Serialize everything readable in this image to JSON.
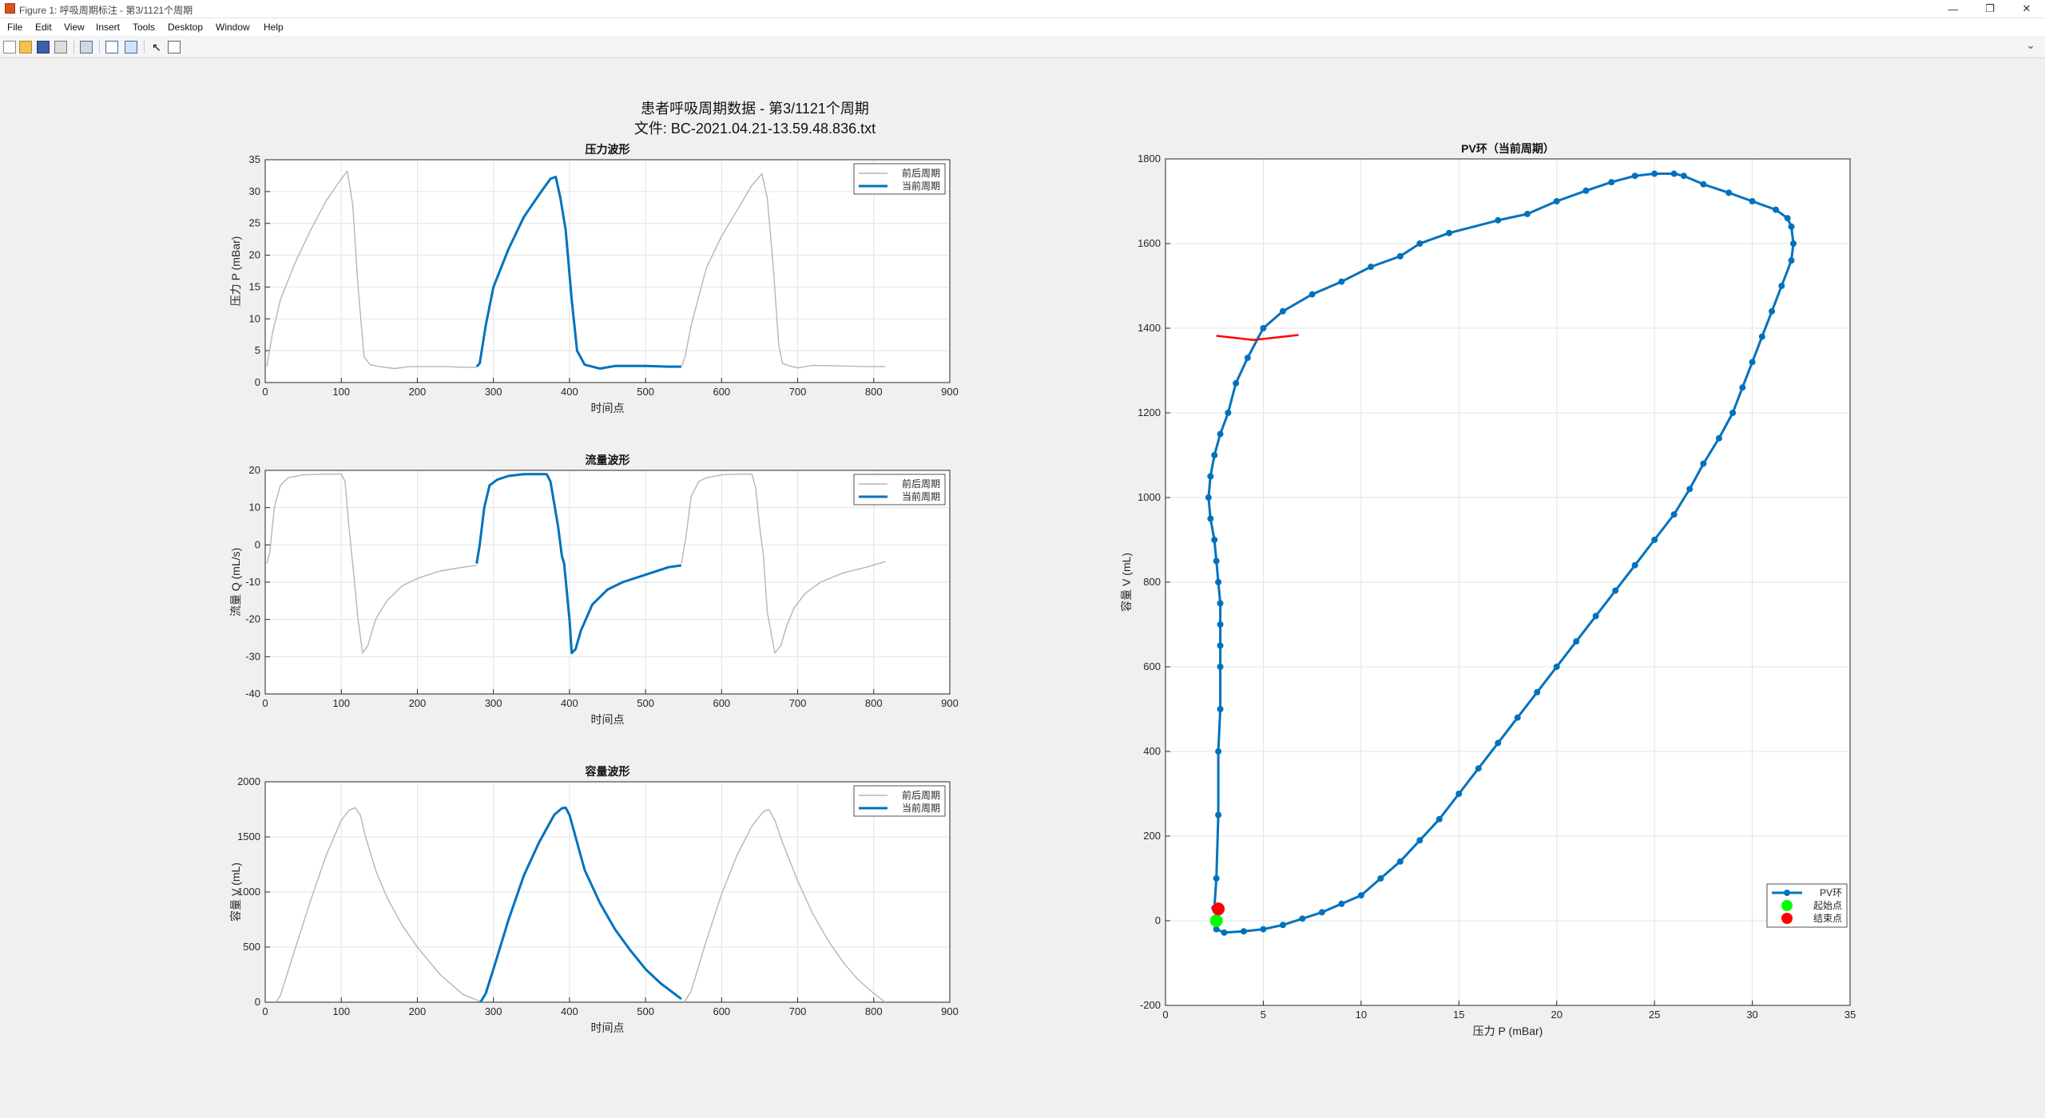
{
  "window": {
    "title": "Figure 1: 呼吸周期标注 - 第3/1121个周期",
    "controls": [
      "—",
      "❐",
      "✕"
    ]
  },
  "menu": [
    "File",
    "Edit",
    "View",
    "Insert",
    "Tools",
    "Desktop",
    "Window",
    "Help"
  ],
  "toolbar": {
    "icons": [
      "new-figure-icon",
      "open-file-icon",
      "save-icon",
      "print-icon",
      "print-preview-icon",
      "hide-plot-tools-icon",
      "show-plot-tools-icon",
      "edit-plot-icon",
      "property-inspector-icon"
    ]
  },
  "figure": {
    "title_line1": "患者呼吸周期数据 - 第3/1121个周期",
    "title_line2": "文件: BC-2021.04.21-13.59.48.836.txt"
  },
  "legend_labels": {
    "prev": "前后周期",
    "curr": "当前周期"
  },
  "colors": {
    "current": "#0072bd",
    "other": "#b5b5b5",
    "start": "#00ff00",
    "end": "#ff0000",
    "marker": "#ff0000"
  },
  "chart_data": [
    {
      "id": "pressure",
      "type": "line",
      "title": "压力波形",
      "xlabel": "时间点",
      "ylabel": "压力 P (mBar)",
      "xlim": [
        0,
        900
      ],
      "ylim": [
        0,
        35
      ],
      "xticks": [
        0,
        100,
        200,
        300,
        400,
        500,
        600,
        700,
        800,
        900
      ],
      "yticks": [
        0,
        5,
        10,
        15,
        20,
        25,
        30,
        35
      ],
      "legend": [
        "前后周期",
        "当前周期"
      ],
      "series": [
        {
          "name": "前后周期",
          "role": "prev",
          "x": [
            2,
            10,
            20,
            40,
            60,
            80,
            100,
            108,
            115,
            122,
            130,
            138,
            150,
            170,
            190,
            210,
            240,
            260,
            278
          ],
          "y": [
            2.5,
            8,
            13,
            19,
            24,
            28.5,
            32,
            33.2,
            28,
            15,
            4,
            2.8,
            2.5,
            2.2,
            2.5,
            2.5,
            2.5,
            2.4,
            2.4
          ]
        },
        {
          "name": "当前周期",
          "role": "curr",
          "x": [
            278,
            282,
            290,
            300,
            320,
            340,
            360,
            375,
            382,
            388,
            395,
            403,
            410,
            420,
            440,
            460,
            500,
            530,
            547
          ],
          "y": [
            2.5,
            3,
            9,
            15,
            21,
            26,
            29.5,
            32,
            32.3,
            29,
            24,
            13,
            5,
            2.8,
            2.2,
            2.6,
            2.6,
            2.5,
            2.5
          ]
        },
        {
          "name": "前后周期",
          "role": "prev",
          "x": [
            547,
            552,
            560,
            580,
            600,
            620,
            640,
            653,
            660,
            668,
            675,
            680,
            690,
            700,
            720,
            760,
            790,
            815
          ],
          "y": [
            2.5,
            4,
            9,
            18,
            23,
            27,
            31,
            32.8,
            29,
            18,
            6,
            3,
            2.6,
            2.3,
            2.7,
            2.6,
            2.5,
            2.5
          ]
        }
      ]
    },
    {
      "id": "flow",
      "type": "line",
      "title": "流量波形",
      "xlabel": "时间点",
      "ylabel": "流量 Q (mL/s)",
      "xlim": [
        0,
        900
      ],
      "ylim": [
        -40,
        20
      ],
      "xticks": [
        0,
        100,
        200,
        300,
        400,
        500,
        600,
        700,
        800,
        900
      ],
      "yticks": [
        -40,
        -30,
        -20,
        -10,
        0,
        10,
        20
      ],
      "legend": [
        "前后周期",
        "当前周期"
      ],
      "series": [
        {
          "name": "前后周期",
          "role": "prev",
          "x": [
            2,
            6,
            12,
            20,
            30,
            50,
            80,
            100,
            105,
            110,
            115,
            122,
            128,
            135,
            145,
            160,
            180,
            200,
            230,
            260,
            278
          ],
          "y": [
            -5,
            -2,
            10,
            16,
            18,
            18.8,
            19,
            19,
            17,
            5,
            -5,
            -20,
            -29,
            -27,
            -20,
            -15,
            -11,
            -9,
            -7,
            -6,
            -5.5
          ]
        },
        {
          "name": "当前周期",
          "role": "curr",
          "x": [
            278,
            282,
            288,
            295,
            305,
            320,
            340,
            360,
            370,
            375,
            385,
            390,
            393,
            400,
            403,
            408,
            415,
            430,
            450,
            470,
            500,
            530,
            547
          ],
          "y": [
            -5,
            0,
            10,
            16,
            17.5,
            18.5,
            19,
            19,
            19,
            17,
            5,
            -3,
            -5,
            -20,
            -29,
            -28,
            -23,
            -16,
            -12,
            -10,
            -8,
            -6,
            -5.5
          ]
        },
        {
          "name": "前后周期",
          "role": "prev",
          "x": [
            547,
            553,
            560,
            570,
            580,
            600,
            620,
            640,
            645,
            650,
            655,
            660,
            670,
            678,
            685,
            695,
            710,
            730,
            760,
            790,
            815
          ],
          "y": [
            -5,
            2,
            13,
            17,
            18,
            18.8,
            19,
            19,
            15,
            5,
            -3,
            -18,
            -29,
            -27,
            -22,
            -17,
            -13,
            -10,
            -7.5,
            -6,
            -4.5
          ]
        }
      ]
    },
    {
      "id": "volume",
      "type": "line",
      "title": "容量波形",
      "xlabel": "时间点",
      "ylabel": "容量 V (mL)",
      "xlim": [
        0,
        900
      ],
      "ylim": [
        0,
        2000
      ],
      "xticks": [
        0,
        100,
        200,
        300,
        400,
        500,
        600,
        700,
        800,
        900
      ],
      "yticks": [
        0,
        500,
        1000,
        1500,
        2000
      ],
      "legend": [
        "前后周期",
        "当前周期"
      ],
      "series": [
        {
          "name": "前后周期",
          "role": "prev",
          "x": [
            14,
            20,
            40,
            60,
            80,
            100,
            110,
            118,
            125,
            132,
            145,
            160,
            180,
            200,
            230,
            260,
            285
          ],
          "y": [
            0,
            60,
            500,
            930,
            1330,
            1650,
            1740,
            1765,
            1700,
            1500,
            1200,
            950,
            700,
            500,
            250,
            70,
            0
          ]
        },
        {
          "name": "当前周期",
          "role": "curr",
          "x": [
            283,
            290,
            300,
            320,
            340,
            360,
            380,
            390,
            395,
            400,
            410,
            420,
            440,
            460,
            480,
            500,
            520,
            547
          ],
          "y": [
            0,
            80,
            300,
            750,
            1150,
            1450,
            1700,
            1760,
            1765,
            1700,
            1450,
            1200,
            900,
            660,
            470,
            300,
            170,
            30
          ]
        },
        {
          "name": "前后周期",
          "role": "prev",
          "x": [
            551,
            560,
            580,
            600,
            620,
            640,
            655,
            662,
            670,
            680,
            700,
            720,
            740,
            760,
            780,
            800,
            815
          ],
          "y": [
            0,
            100,
            560,
            980,
            1330,
            1600,
            1730,
            1750,
            1650,
            1450,
            1100,
            800,
            560,
            360,
            200,
            80,
            0
          ]
        }
      ]
    },
    {
      "id": "pv",
      "type": "line",
      "title": "PV环（当前周期）",
      "xlabel": "压力 P (mBar)",
      "ylabel": "容量 V (mL)",
      "xlim": [
        0,
        35
      ],
      "ylim": [
        -200,
        1800
      ],
      "xticks": [
        0,
        5,
        10,
        15,
        20,
        25,
        30,
        35
      ],
      "yticks": [
        -200,
        0,
        200,
        400,
        600,
        800,
        1000,
        1200,
        1400,
        1600,
        1800
      ],
      "legend": [
        "PV环",
        "起始点",
        "结束点"
      ],
      "series": [
        {
          "name": "PV环",
          "role": "loop",
          "p": [
            2.5,
            2.6,
            2.7,
            2.7,
            2.8,
            2.8,
            2.8,
            2.8,
            2.8,
            2.7,
            2.6,
            2.5,
            2.3,
            2.2,
            2.3,
            2.5,
            2.8,
            3.2,
            3.6,
            4.2,
            5.0,
            6.0,
            7.5,
            9.0,
            10.5,
            12.0,
            13.0,
            14.5,
            17.0,
            18.5,
            20.0,
            21.5,
            22.8,
            24.0,
            25.0,
            26.0,
            26.5,
            27.5,
            28.8,
            30.0,
            31.2,
            31.8,
            32.0,
            32.1,
            32.0,
            31.5,
            31.0,
            30.5,
            30.0,
            29.5,
            29.0,
            28.3,
            27.5,
            26.8,
            26.0,
            25.0,
            24.0,
            23.0,
            22.0,
            21.0,
            20.0,
            19.0,
            18.0,
            17.0,
            16.0,
            15.0,
            14.0,
            13.0,
            12.0,
            11.0,
            10.0,
            9.0,
            8.0,
            7.0,
            6.0,
            5.0,
            4.0,
            3.0,
            2.6
          ],
          "v": [
            30,
            100,
            250,
            400,
            500,
            600,
            650,
            700,
            750,
            800,
            850,
            900,
            950,
            1000,
            1050,
            1100,
            1150,
            1200,
            1270,
            1330,
            1400,
            1440,
            1480,
            1510,
            1545,
            1570,
            1600,
            1625,
            1655,
            1670,
            1700,
            1725,
            1745,
            1760,
            1765,
            1765,
            1760,
            1740,
            1720,
            1700,
            1680,
            1660,
            1640,
            1600,
            1560,
            1500,
            1440,
            1380,
            1320,
            1260,
            1200,
            1140,
            1080,
            1020,
            960,
            900,
            840,
            780,
            720,
            660,
            600,
            540,
            480,
            420,
            360,
            300,
            240,
            190,
            140,
            100,
            60,
            40,
            20,
            5,
            -10,
            -20,
            -25,
            -28,
            -20
          ]
        },
        {
          "name": "起始点",
          "role": "start",
          "p": [
            2.6
          ],
          "v": [
            0
          ]
        },
        {
          "name": "结束点",
          "role": "end",
          "p": [
            2.7
          ],
          "v": [
            28
          ]
        },
        {
          "name": "",
          "role": "marker",
          "p": [
            2.6,
            4.5,
            6.8
          ],
          "v": [
            1382,
            1372,
            1384
          ]
        }
      ]
    }
  ]
}
